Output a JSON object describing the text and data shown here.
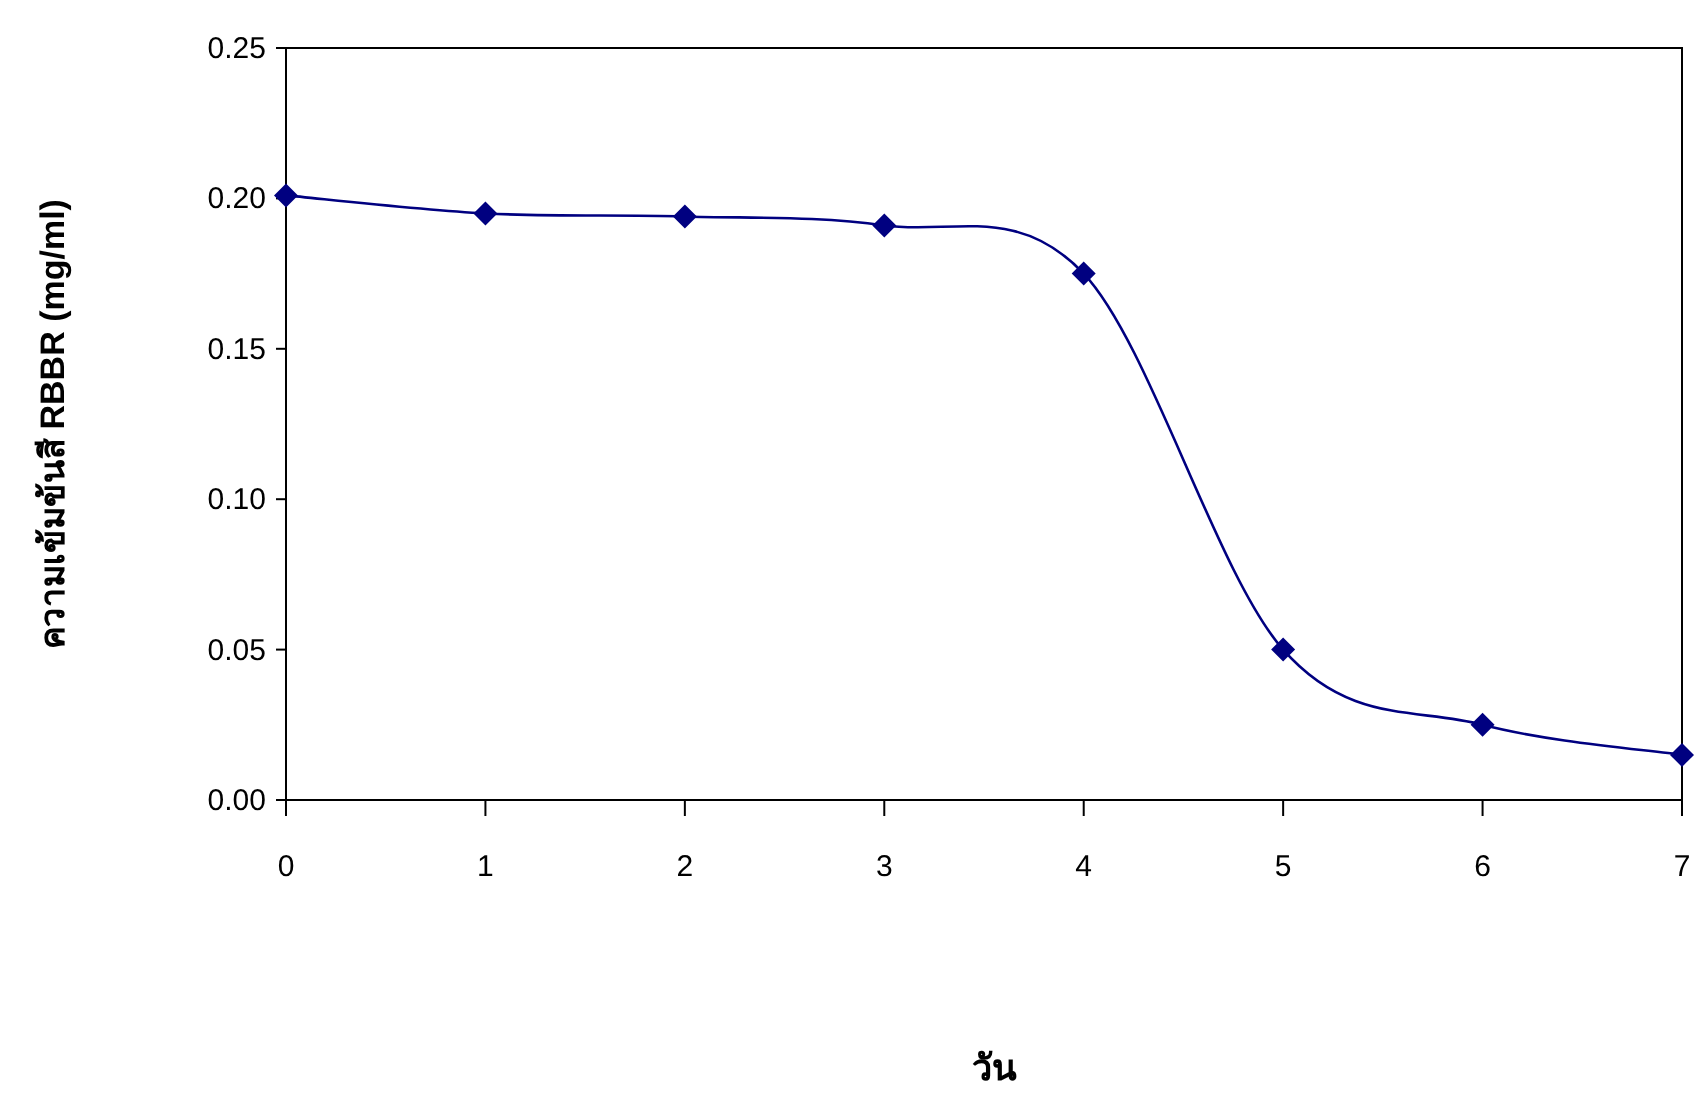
{
  "chart_data": {
    "type": "line",
    "xlabel": "วัน",
    "ylabel": "ความเข้มข้นสี RBBR (mg/ml)",
    "x": [
      0,
      1,
      2,
      3,
      4,
      5,
      6,
      7
    ],
    "series": [
      {
        "color": "#000080",
        "values": [
          0.201,
          0.195,
          0.194,
          0.191,
          0.175,
          0.05,
          0.025,
          0.015
        ]
      }
    ],
    "marker": "diamond",
    "line_style": "solid",
    "xlim": [
      0,
      7
    ],
    "xticks": [
      0,
      1,
      2,
      3,
      4,
      5,
      6,
      7
    ],
    "ylim": [
      0,
      0.25
    ],
    "yticks": [
      {
        "value": 0,
        "label": "0.00"
      },
      {
        "value": 0.05,
        "label": "0.05"
      },
      {
        "value": 0.1,
        "label": "0.10"
      },
      {
        "value": 0.15,
        "label": "0.15"
      },
      {
        "value": 0.2,
        "label": "0.20"
      },
      {
        "value": 0.25,
        "label": "0.25"
      }
    ]
  }
}
